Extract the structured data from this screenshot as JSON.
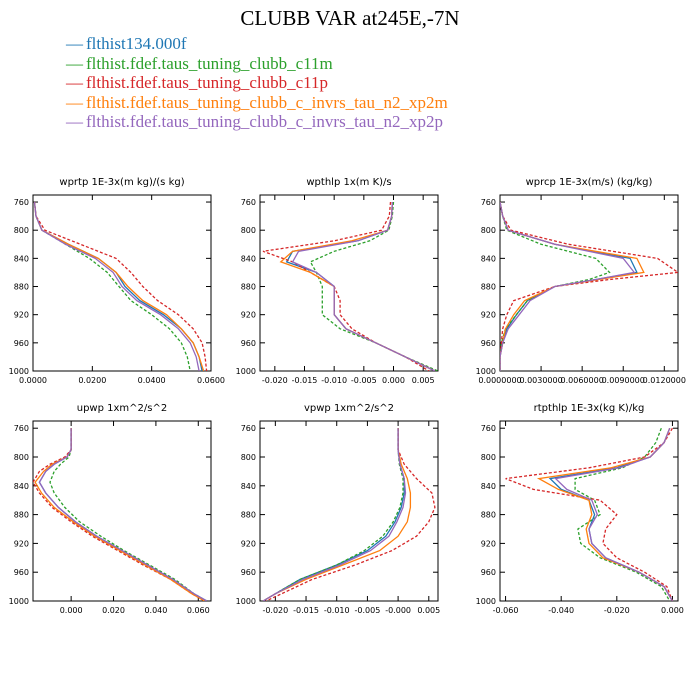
{
  "title": "CLUBB VAR at245E,-7N",
  "legend": [
    {
      "label": "flthist134.000f",
      "color": "#1f77b4"
    },
    {
      "label": "flthist.fdef.taus_tuning_clubb_c11m",
      "color": "#2ca02c"
    },
    {
      "label": "flthist.fdef.taus_tuning_clubb_c11p",
      "color": "#d62728"
    },
    {
      "label": "flthist.fdef.taus_tuning_clubb_c_invrs_tau_n2_xp2m",
      "color": "#ff7f0e"
    },
    {
      "label": "flthist.fdef.taus_tuning_clubb_c_invrs_tau_n2_xp2p",
      "color": "#9467bd"
    }
  ],
  "chart_data": [
    {
      "type": "line",
      "title": "wprtp  1E-3x(m kg)/(s kg)",
      "xlim": [
        0,
        0.06
      ],
      "ylim": [
        1000,
        750
      ],
      "xticks": [
        "0.0000",
        "0.0200",
        "0.0400",
        "0.0600"
      ],
      "xtick_values": [
        0,
        0.02,
        0.04,
        0.06
      ],
      "yticks": [
        "760",
        "800",
        "840",
        "880",
        "920",
        "960",
        "1000"
      ],
      "ytick_values": [
        760,
        800,
        840,
        880,
        920,
        960,
        1000
      ],
      "y": [
        760,
        780,
        800,
        820,
        840,
        860,
        880,
        900,
        920,
        940,
        960,
        980,
        1000
      ],
      "series": [
        {
          "color": "#1f77b4",
          "dashed": false,
          "values": [
            0.0005,
            0.001,
            0.003,
            0.012,
            0.022,
            0.028,
            0.031,
            0.036,
            0.044,
            0.05,
            0.054,
            0.056,
            0.057
          ]
        },
        {
          "color": "#2ca02c",
          "dashed": true,
          "values": [
            0.0005,
            0.001,
            0.003,
            0.011,
            0.019,
            0.025,
            0.029,
            0.033,
            0.04,
            0.046,
            0.05,
            0.052,
            0.053
          ]
        },
        {
          "color": "#d62728",
          "dashed": true,
          "values": [
            0.0005,
            0.001,
            0.004,
            0.016,
            0.028,
            0.033,
            0.037,
            0.042,
            0.049,
            0.054,
            0.057,
            0.058,
            0.0585
          ]
        },
        {
          "color": "#ff7f0e",
          "dashed": false,
          "values": [
            0.0005,
            0.001,
            0.003,
            0.012,
            0.022,
            0.028,
            0.032,
            0.037,
            0.045,
            0.05,
            0.054,
            0.056,
            0.0575
          ]
        },
        {
          "color": "#9467bd",
          "dashed": false,
          "values": [
            0.0005,
            0.001,
            0.003,
            0.011,
            0.021,
            0.027,
            0.03,
            0.035,
            0.043,
            0.049,
            0.053,
            0.055,
            0.056
          ]
        }
      ]
    },
    {
      "type": "line",
      "title": "wpthlp  1x(m K)/s",
      "xlim": [
        -0.0225,
        0.0075
      ],
      "ylim": [
        1000,
        750
      ],
      "xticks": [
        "-0.020",
        "-0.015",
        "-0.010",
        "-0.005",
        "0.000",
        "0.005"
      ],
      "xtick_values": [
        -0.02,
        -0.015,
        -0.01,
        -0.005,
        0,
        0.005
      ],
      "yticks": [
        "760",
        "800",
        "840",
        "880",
        "920",
        "960",
        "1000"
      ],
      "ytick_values": [
        760,
        800,
        840,
        880,
        920,
        960,
        1000
      ],
      "y": [
        760,
        780,
        800,
        815,
        830,
        845,
        860,
        880,
        900,
        920,
        940,
        960,
        980,
        1000
      ],
      "series": [
        {
          "color": "#1f77b4",
          "dashed": false,
          "values": [
            -0.0002,
            -0.0003,
            -0.001,
            -0.006,
            -0.017,
            -0.018,
            -0.013,
            -0.01,
            -0.01,
            -0.01,
            -0.008,
            -0.003,
            0.002,
            0.007
          ]
        },
        {
          "color": "#2ca02c",
          "dashed": true,
          "values": [
            0.0,
            -0.0002,
            -0.0008,
            -0.004,
            -0.01,
            -0.014,
            -0.013,
            -0.012,
            -0.012,
            -0.012,
            -0.009,
            -0.003,
            0.002,
            0.0075
          ]
        },
        {
          "color": "#d62728",
          "dashed": true,
          "values": [
            -0.0005,
            -0.0007,
            -0.002,
            -0.01,
            -0.022,
            -0.017,
            -0.014,
            -0.01,
            -0.009,
            -0.009,
            -0.007,
            -0.003,
            0.002,
            0.006
          ]
        },
        {
          "color": "#ff7f0e",
          "dashed": false,
          "values": [
            -0.0002,
            -0.0003,
            -0.001,
            -0.007,
            -0.017,
            -0.019,
            -0.014,
            -0.01,
            -0.01,
            -0.01,
            -0.008,
            -0.003,
            0.002,
            0.007
          ]
        },
        {
          "color": "#9467bd",
          "dashed": false,
          "values": [
            -0.0002,
            -0.0003,
            -0.001,
            -0.006,
            -0.016,
            -0.017,
            -0.013,
            -0.01,
            -0.01,
            -0.01,
            -0.008,
            -0.003,
            0.002,
            0.007
          ]
        }
      ]
    },
    {
      "type": "line",
      "title": "wprcp  1E-3x(m/s) (kg/kg)",
      "xlim": [
        0,
        0.013
      ],
      "ylim": [
        1000,
        750
      ],
      "xticks": [
        "0.0000000",
        "0.0030000",
        "0.0060000",
        "0.0090000",
        "0.0120000"
      ],
      "xtick_values": [
        0,
        0.003,
        0.006,
        0.009,
        0.012
      ],
      "yticks": [
        "760",
        "800",
        "840",
        "880",
        "920",
        "960",
        "1000"
      ],
      "ytick_values": [
        760,
        800,
        840,
        880,
        920,
        960,
        1000
      ],
      "y": [
        760,
        780,
        800,
        820,
        840,
        860,
        870,
        880,
        900,
        920,
        940,
        960,
        980,
        1000
      ],
      "series": [
        {
          "color": "#1f77b4",
          "dashed": false,
          "values": [
            0,
            0.0002,
            0.0006,
            0.004,
            0.0095,
            0.01,
            0.007,
            0.004,
            0.002,
            0.0012,
            0.0005,
            0.0002,
            0,
            0
          ]
        },
        {
          "color": "#2ca02c",
          "dashed": true,
          "values": [
            0,
            0.0002,
            0.0005,
            0.003,
            0.007,
            0.008,
            0.0065,
            0.004,
            0.002,
            0.0012,
            0.0004,
            0.0001,
            0,
            0
          ]
        },
        {
          "color": "#d62728",
          "dashed": true,
          "values": [
            0,
            0.0002,
            0.0008,
            0.005,
            0.0115,
            0.013,
            0.008,
            0.004,
            0.001,
            0.0005,
            0.0002,
            0.0001,
            0,
            0
          ]
        },
        {
          "color": "#ff7f0e",
          "dashed": false,
          "values": [
            0,
            0.0002,
            0.0006,
            0.004,
            0.01,
            0.0105,
            0.0072,
            0.004,
            0.0018,
            0.001,
            0.0004,
            0.0002,
            0,
            0
          ]
        },
        {
          "color": "#9467bd",
          "dashed": false,
          "values": [
            0,
            0.0002,
            0.0006,
            0.004,
            0.009,
            0.0098,
            0.007,
            0.004,
            0.0022,
            0.0014,
            0.0006,
            0.0002,
            0,
            0
          ]
        }
      ]
    },
    {
      "type": "line",
      "title": "upwp  1xm^2/s^2",
      "xlim": [
        -0.018,
        0.066
      ],
      "ylim": [
        1000,
        750
      ],
      "xticks": [
        "0.000",
        "0.020",
        "0.040",
        "0.060"
      ],
      "xtick_values": [
        0,
        0.02,
        0.04,
        0.06
      ],
      "yticks": [
        "760",
        "800",
        "840",
        "880",
        "920",
        "960",
        "1000"
      ],
      "ytick_values": [
        760,
        800,
        840,
        880,
        920,
        960,
        1000
      ],
      "y": [
        760,
        790,
        800,
        810,
        820,
        835,
        850,
        870,
        890,
        910,
        930,
        950,
        970,
        990,
        1000
      ],
      "series": [
        {
          "color": "#1f77b4",
          "dashed": false,
          "values": [
            0,
            0,
            -0.002,
            -0.008,
            -0.012,
            -0.015,
            -0.012,
            -0.006,
            0.002,
            0.012,
            0.024,
            0.036,
            0.048,
            0.058,
            0.064
          ]
        },
        {
          "color": "#2ca02c",
          "dashed": true,
          "values": [
            0,
            0,
            -0.001,
            -0.005,
            -0.008,
            -0.01,
            -0.008,
            -0.003,
            0.004,
            0.014,
            0.025,
            0.037,
            0.049,
            0.058,
            0.064
          ]
        },
        {
          "color": "#d62728",
          "dashed": true,
          "values": [
            0,
            0,
            -0.003,
            -0.01,
            -0.015,
            -0.018,
            -0.015,
            -0.009,
            0.0,
            0.01,
            0.022,
            0.034,
            0.047,
            0.057,
            0.063
          ]
        },
        {
          "color": "#ff7f0e",
          "dashed": false,
          "values": [
            0,
            0,
            -0.002,
            -0.009,
            -0.013,
            -0.017,
            -0.014,
            -0.008,
            0.001,
            0.011,
            0.023,
            0.035,
            0.047,
            0.057,
            0.063
          ]
        },
        {
          "color": "#9467bd",
          "dashed": false,
          "values": [
            0,
            0,
            -0.002,
            -0.008,
            -0.012,
            -0.015,
            -0.012,
            -0.006,
            0.002,
            0.012,
            0.024,
            0.036,
            0.048,
            0.058,
            0.064
          ]
        }
      ]
    },
    {
      "type": "line",
      "title": "vpwp  1xm^2/s^2",
      "xlim": [
        -0.0225,
        0.0065
      ],
      "ylim": [
        1000,
        750
      ],
      "xticks": [
        "-0.020",
        "-0.015",
        "-0.010",
        "-0.005",
        "-0.000",
        "0.005"
      ],
      "xtick_values": [
        -0.02,
        -0.015,
        -0.01,
        -0.005,
        0,
        0.005
      ],
      "yticks": [
        "760",
        "800",
        "840",
        "880",
        "920",
        "960",
        "1000"
      ],
      "ytick_values": [
        760,
        800,
        840,
        880,
        920,
        960,
        1000
      ],
      "y": [
        760,
        790,
        810,
        830,
        850,
        870,
        890,
        910,
        930,
        950,
        970,
        990,
        1000
      ],
      "series": [
        {
          "color": "#1f77b4",
          "dashed": false,
          "values": [
            0,
            0,
            0.0003,
            0.001,
            0.001,
            0.0005,
            -0.0005,
            -0.002,
            -0.005,
            -0.01,
            -0.016,
            -0.02,
            -0.022
          ]
        },
        {
          "color": "#2ca02c",
          "dashed": true,
          "values": [
            0,
            0,
            0.0002,
            0.0008,
            0.0008,
            0.0003,
            -0.0008,
            -0.0025,
            -0.0055,
            -0.01,
            -0.016,
            -0.02,
            -0.022
          ]
        },
        {
          "color": "#d62728",
          "dashed": true,
          "values": [
            0,
            0,
            0.001,
            0.003,
            0.0055,
            0.006,
            0.005,
            0.003,
            -0.001,
            -0.007,
            -0.014,
            -0.019,
            -0.0215
          ]
        },
        {
          "color": "#ff7f0e",
          "dashed": false,
          "values": [
            0,
            0,
            0.0005,
            0.0015,
            0.002,
            0.002,
            0.0015,
            0.0,
            -0.003,
            -0.009,
            -0.015,
            -0.02,
            -0.022
          ]
        },
        {
          "color": "#9467bd",
          "dashed": false,
          "values": [
            0,
            0,
            0.0003,
            0.001,
            0.0012,
            0.0008,
            -0.0002,
            -0.0015,
            -0.0045,
            -0.0095,
            -0.0155,
            -0.02,
            -0.022
          ]
        }
      ]
    },
    {
      "type": "line",
      "title": "rtpthlp  1E-3x(kg K)/kg",
      "xlim": [
        -0.062,
        0.002
      ],
      "ylim": [
        1000,
        750
      ],
      "xticks": [
        "-0.060",
        "-0.040",
        "-0.020",
        "0.000"
      ],
      "xtick_values": [
        -0.06,
        -0.04,
        -0.02,
        0
      ],
      "yticks": [
        "760",
        "800",
        "840",
        "880",
        "920",
        "960",
        "1000"
      ],
      "ytick_values": [
        760,
        800,
        840,
        880,
        920,
        960,
        1000
      ],
      "y": [
        760,
        780,
        800,
        815,
        830,
        845,
        860,
        880,
        900,
        920,
        940,
        960,
        980,
        1000
      ],
      "series": [
        {
          "color": "#1f77b4",
          "dashed": false,
          "values": [
            -0.001,
            -0.003,
            -0.008,
            -0.02,
            -0.044,
            -0.04,
            -0.03,
            -0.028,
            -0.03,
            -0.029,
            -0.024,
            -0.012,
            -0.003,
            0.0
          ]
        },
        {
          "color": "#2ca02c",
          "dashed": true,
          "values": [
            -0.004,
            -0.006,
            -0.01,
            -0.018,
            -0.035,
            -0.035,
            -0.028,
            -0.026,
            -0.034,
            -0.033,
            -0.026,
            -0.013,
            -0.004,
            -0.001
          ]
        },
        {
          "color": "#d62728",
          "dashed": true,
          "values": [
            0.0,
            -0.003,
            -0.01,
            -0.03,
            -0.06,
            -0.05,
            -0.026,
            -0.02,
            -0.024,
            -0.025,
            -0.02,
            -0.01,
            -0.002,
            0.0
          ]
        },
        {
          "color": "#ff7f0e",
          "dashed": false,
          "values": [
            -0.001,
            -0.003,
            -0.008,
            -0.022,
            -0.048,
            -0.041,
            -0.03,
            -0.029,
            -0.031,
            -0.03,
            -0.025,
            -0.012,
            -0.003,
            0.0
          ]
        },
        {
          "color": "#9467bd",
          "dashed": false,
          "values": [
            -0.001,
            -0.003,
            -0.008,
            -0.019,
            -0.042,
            -0.038,
            -0.029,
            -0.027,
            -0.03,
            -0.029,
            -0.024,
            -0.012,
            -0.003,
            0.0
          ]
        }
      ]
    }
  ]
}
